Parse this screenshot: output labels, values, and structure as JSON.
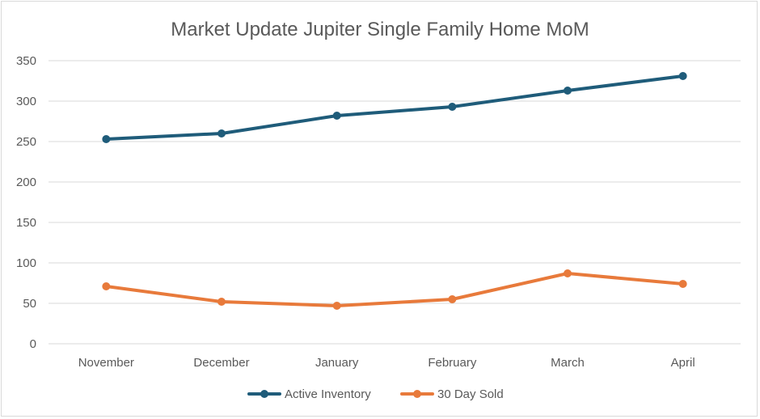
{
  "chart_data": {
    "type": "line",
    "title": "Market Update Jupiter Single Family Home MoM",
    "categories": [
      "November",
      "December",
      "January",
      "February",
      "March",
      "April"
    ],
    "series": [
      {
        "name": "Active Inventory",
        "values": [
          253,
          260,
          282,
          293,
          313,
          331
        ],
        "color": "#1f5c7a"
      },
      {
        "name": "30 Day Sold",
        "values": [
          71,
          52,
          47,
          55,
          87,
          74
        ],
        "color": "#e87a3b"
      }
    ],
    "ylim": [
      0,
      350
    ],
    "yticks": [
      "0",
      "50",
      "100",
      "150",
      "200",
      "250",
      "300",
      "350"
    ],
    "grid": true,
    "legend": "bottom"
  }
}
